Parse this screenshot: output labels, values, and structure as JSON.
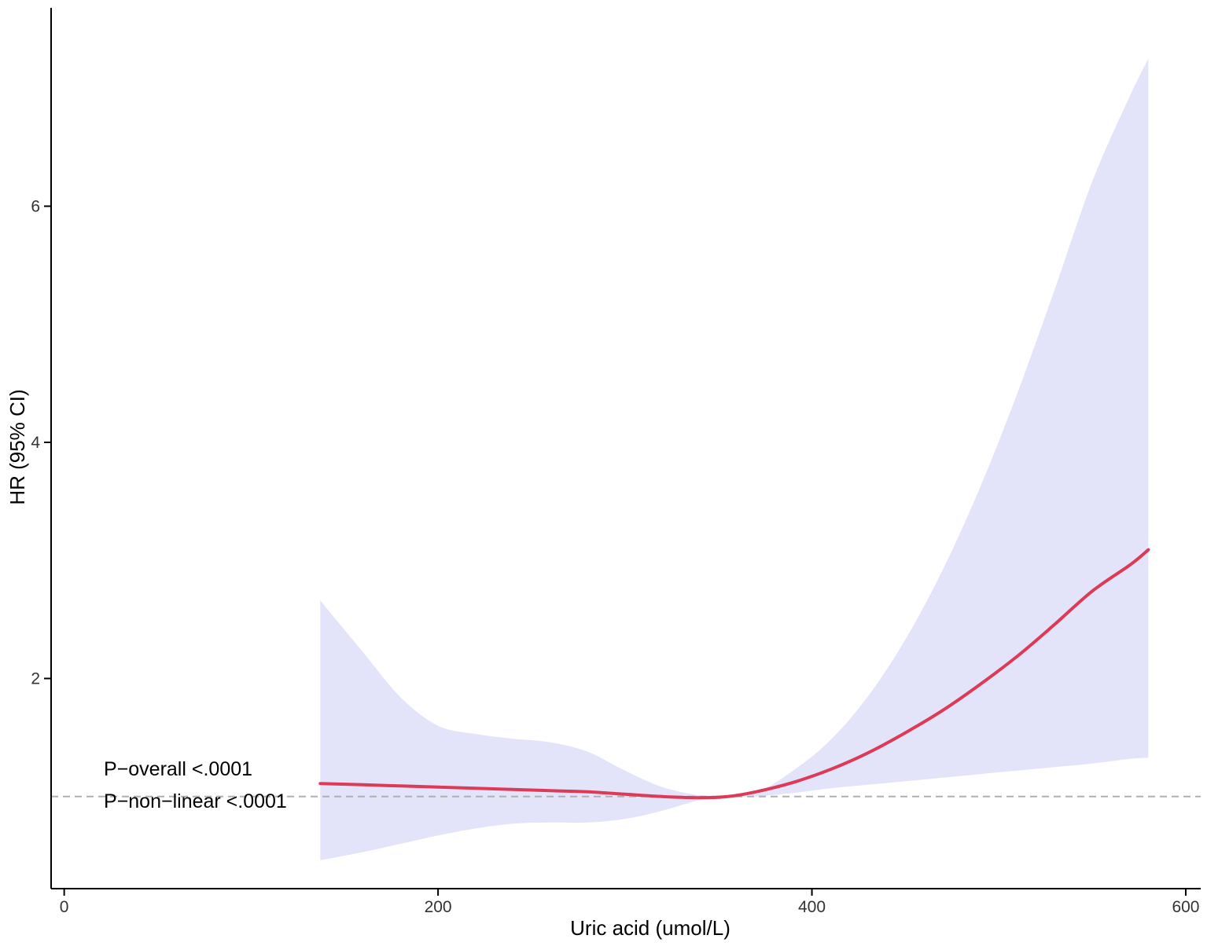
{
  "chart_data": {
    "type": "line",
    "title": "",
    "xlabel": "Uric acid (umol/L)",
    "ylabel": "HR (95% CI)",
    "xlim": [
      -7,
      608
    ],
    "ylim": [
      0.22,
      7.68
    ],
    "x_ticks": [
      0,
      200,
      400,
      600
    ],
    "y_ticks": [
      2,
      4,
      6
    ],
    "x_tick_labels": [
      "0",
      "200",
      "400",
      "600"
    ],
    "y_tick_labels": [
      "2",
      "4",
      "6"
    ],
    "reference_line": 1,
    "grid": false,
    "legend": "none",
    "colors": {
      "line": "#dc3a56",
      "band": "#e3e3fa",
      "reference": "#b0b0b0",
      "axis": "#000000"
    },
    "annotations": [
      "P−overall <.0001",
      "P−non−linear <.0001"
    ],
    "series": [
      {
        "x": [
          137,
          160,
          180,
          200,
          220,
          240,
          260,
          280,
          300,
          320,
          340,
          355,
          370,
          390,
          410,
          430,
          450,
          470,
          490,
          510,
          530,
          550,
          570,
          580
        ],
        "y": [
          1.11,
          1.1,
          1.09,
          1.08,
          1.07,
          1.06,
          1.05,
          1.04,
          1.02,
          1.0,
          0.99,
          1.0,
          1.04,
          1.12,
          1.23,
          1.37,
          1.54,
          1.73,
          1.95,
          2.19,
          2.46,
          2.74,
          2.96,
          3.09
        ],
        "lower": [
          0.46,
          0.53,
          0.6,
          0.67,
          0.73,
          0.77,
          0.78,
          0.78,
          0.81,
          0.88,
          0.97,
          1.0,
          1.0,
          1.03,
          1.07,
          1.1,
          1.13,
          1.16,
          1.19,
          1.22,
          1.25,
          1.28,
          1.32,
          1.33
        ],
        "upper": [
          2.66,
          2.22,
          1.84,
          1.6,
          1.53,
          1.49,
          1.46,
          1.38,
          1.22,
          1.08,
          1.01,
          1.0,
          1.03,
          1.22,
          1.48,
          1.85,
          2.33,
          2.92,
          3.62,
          4.42,
          5.3,
          6.21,
          6.93,
          7.25
        ]
      }
    ]
  }
}
